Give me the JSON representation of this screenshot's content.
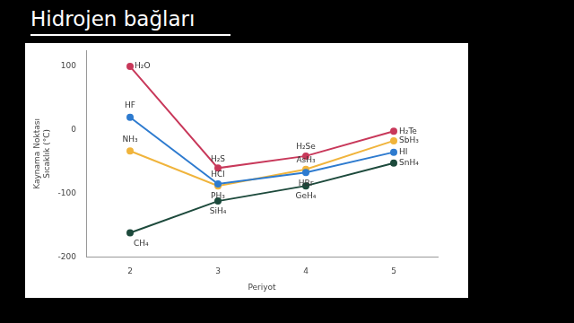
{
  "chart_data": {
    "type": "line",
    "title": "Hidrojen bağları",
    "x_label": "Periyot",
    "y_label": [
      "Kaynama Noktası",
      "Sıcaklık (°C)"
    ],
    "categories": [
      "2",
      "3",
      "4",
      "5"
    ],
    "series": [
      {
        "color": "#c8385a",
        "marker": "circle",
        "values": [
          100,
          -60,
          -41,
          -2
        ],
        "point_labels": [
          "H₂O",
          "H₂S",
          "H₂Se",
          "H₂Te"
        ]
      },
      {
        "color": "#2e7bcf",
        "marker": "circle",
        "values": [
          20,
          -85,
          -67,
          -35
        ],
        "point_labels": [
          "HF",
          "HCl",
          "HBr",
          "HI"
        ]
      },
      {
        "color": "#f0b43c",
        "marker": "circle",
        "values": [
          -33,
          -88,
          -62,
          -17
        ],
        "point_labels": [
          "NH₃",
          "PH₃",
          "AsH₃",
          "SbH₃"
        ]
      },
      {
        "color": "#1d4a3c",
        "marker": "circle",
        "values": [
          -162,
          -112,
          -88,
          -52
        ],
        "point_labels": [
          "CH₄",
          "SiH₄",
          "GeH₄",
          "SnH₄"
        ]
      }
    ],
    "ylim": [
      -200,
      125
    ],
    "yticks": [
      -200,
      -100,
      0,
      100
    ],
    "grid": false,
    "legend": false
  }
}
